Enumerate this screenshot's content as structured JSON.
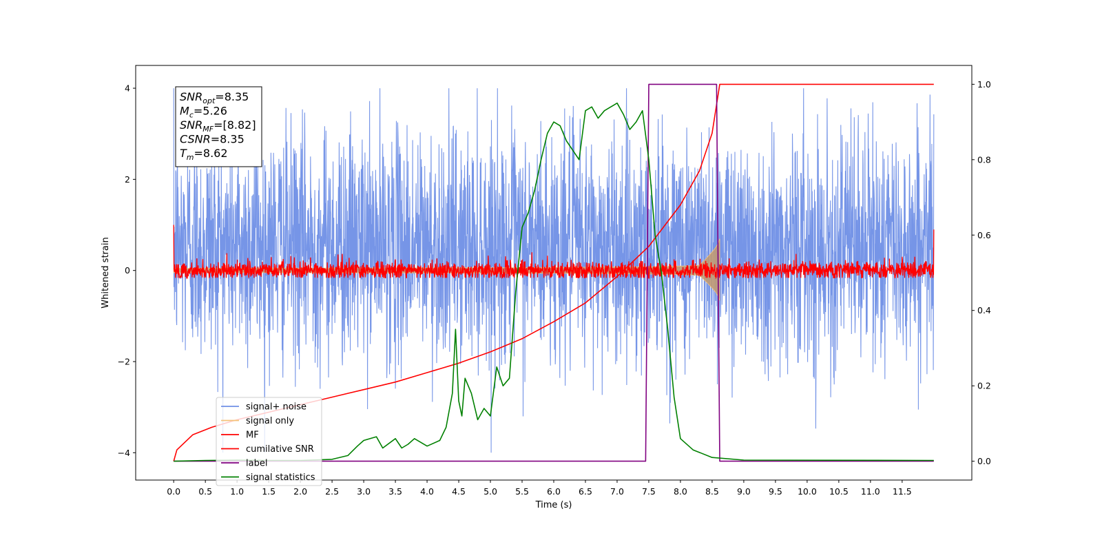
{
  "chart_data": {
    "type": "line",
    "xlabel": "Time (s)",
    "ylabel_left": "Whitened strain",
    "xlim": [
      -0.6,
      12.6
    ],
    "ylim_left": [
      -4.6,
      4.5
    ],
    "ylim_right": [
      -0.05,
      1.05
    ],
    "x_ticks": [
      "0.0",
      "0.5",
      "1.0",
      "1.5",
      "2.0",
      "2.5",
      "3.0",
      "3.5",
      "4.0",
      "4.5",
      "5.0",
      "5.5",
      "6.0",
      "6.5",
      "7.0",
      "7.5",
      "8.0",
      "8.5",
      "9.0",
      "9.5",
      "10.0",
      "10.5",
      "11.0",
      "11.5"
    ],
    "y_ticks_left": [
      "4",
      "2",
      "0",
      "−2",
      "−4"
    ],
    "y_ticks_right": [
      "1.0",
      "0.8",
      "0.6",
      "0.4",
      "0.2",
      "0.0"
    ],
    "annotation": [
      {
        "main": "SNR",
        "sub": "opt",
        "value": "=8.35"
      },
      {
        "main": "M",
        "sub": "c",
        "value": "=5.26"
      },
      {
        "main": "SNR",
        "sub": "MF",
        "value": "=[8.82]"
      },
      {
        "main": "CSNR",
        "sub": "",
        "value": "=8.35"
      },
      {
        "main": "T",
        "sub": "m",
        "value": "=8.62"
      }
    ],
    "series": [
      {
        "name": "signal+ noise",
        "color": "#6f8fe6",
        "axis": "left",
        "envelope_amplitude": 4.0
      },
      {
        "name": "signal only",
        "color": "#f5c27a",
        "axis": "left",
        "amplitude_at_start": 0.05,
        "amplitude_at_merger": 1.0,
        "merger_time": 8.62
      },
      {
        "name": "MF",
        "color": "#ff0000",
        "axis": "left",
        "envelope_amplitude": 0.4
      },
      {
        "name": "cumilative SNR",
        "color": "#ff0000",
        "axis": "right",
        "x": [
          0.0,
          0.05,
          0.3,
          0.6,
          1.0,
          1.5,
          2.0,
          2.5,
          3.0,
          3.5,
          4.0,
          4.5,
          5.0,
          5.5,
          6.0,
          6.5,
          7.0,
          7.5,
          8.0,
          8.3,
          8.5,
          8.62,
          9.0,
          12.0
        ],
        "y": [
          0.0,
          0.03,
          0.07,
          0.09,
          0.11,
          0.13,
          0.15,
          0.17,
          0.19,
          0.21,
          0.235,
          0.26,
          0.29,
          0.325,
          0.37,
          0.42,
          0.49,
          0.57,
          0.68,
          0.77,
          0.87,
          1.0,
          1.0,
          1.0
        ]
      },
      {
        "name": "label",
        "color": "#800080",
        "axis": "right",
        "x": [
          0.0,
          7.45,
          7.5,
          8.57,
          8.62,
          12.0
        ],
        "y": [
          0.0,
          0.0,
          1.0,
          1.0,
          0.0,
          0.0
        ]
      },
      {
        "name": "signal statistics",
        "color": "#008000",
        "axis": "right",
        "x": [
          0.0,
          0.5,
          1.0,
          1.5,
          2.0,
          2.5,
          2.75,
          2.9,
          3.0,
          3.2,
          3.3,
          3.5,
          3.6,
          3.7,
          3.8,
          4.0,
          4.2,
          4.3,
          4.4,
          4.45,
          4.5,
          4.55,
          4.6,
          4.7,
          4.8,
          4.9,
          5.0,
          5.1,
          5.2,
          5.3,
          5.4,
          5.5,
          5.6,
          5.7,
          5.8,
          5.9,
          6.0,
          6.1,
          6.2,
          6.4,
          6.5,
          6.6,
          6.7,
          6.8,
          6.9,
          7.0,
          7.1,
          7.2,
          7.3,
          7.4,
          7.5,
          7.6,
          7.7,
          7.8,
          7.9,
          8.0,
          8.2,
          8.5,
          9.0,
          12.0
        ],
        "y": [
          0.0,
          0.002,
          0.003,
          0.002,
          0.002,
          0.005,
          0.015,
          0.04,
          0.055,
          0.065,
          0.035,
          0.06,
          0.035,
          0.045,
          0.06,
          0.04,
          0.055,
          0.09,
          0.18,
          0.35,
          0.16,
          0.12,
          0.22,
          0.18,
          0.11,
          0.14,
          0.12,
          0.25,
          0.2,
          0.22,
          0.45,
          0.62,
          0.66,
          0.72,
          0.8,
          0.87,
          0.9,
          0.89,
          0.85,
          0.8,
          0.93,
          0.94,
          0.91,
          0.93,
          0.94,
          0.95,
          0.92,
          0.88,
          0.9,
          0.93,
          0.8,
          0.6,
          0.5,
          0.35,
          0.17,
          0.06,
          0.03,
          0.01,
          0.003,
          0.002
        ]
      }
    ],
    "legend_position": "lower-left",
    "grid": false
  }
}
